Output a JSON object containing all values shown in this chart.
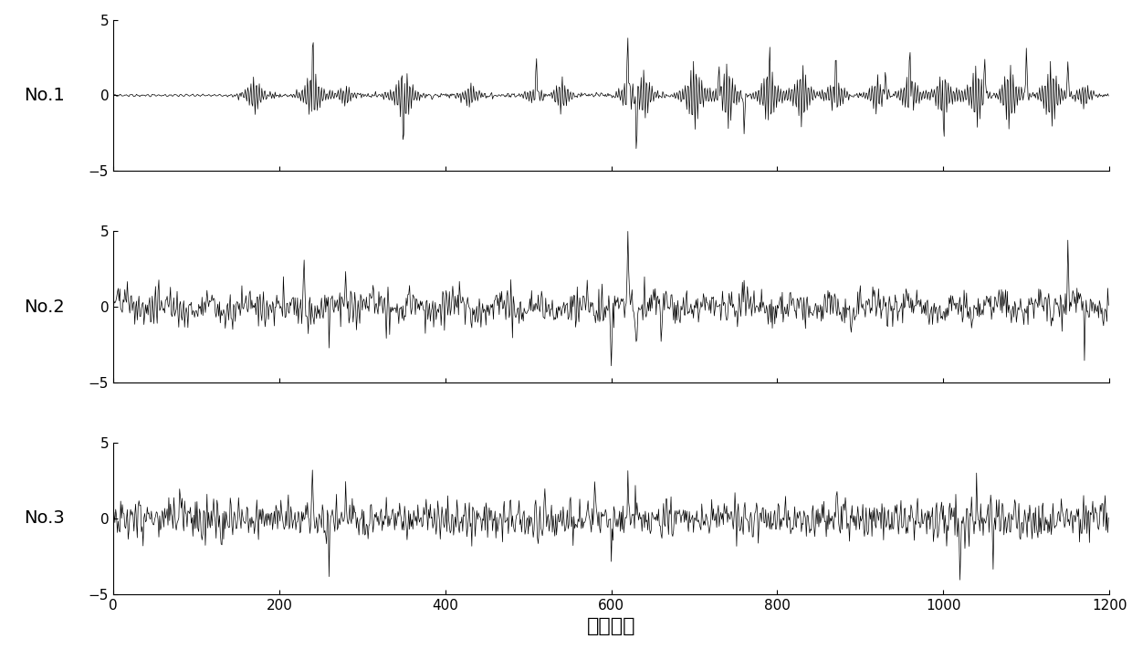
{
  "n_samples": 1200,
  "ylim": [
    -5,
    5
  ],
  "yticks": [
    -5,
    0,
    5
  ],
  "xticks": [
    0,
    200,
    400,
    600,
    800,
    1000,
    1200
  ],
  "xlabel": "采样点数",
  "ylabel_1": "No.1",
  "ylabel_2": "No.2",
  "ylabel_3": "No.3",
  "line_color": "#000000",
  "line_width": 0.5,
  "bg_color": "#ffffff",
  "xlabel_fontsize": 16,
  "ylabel_fontsize": 14
}
